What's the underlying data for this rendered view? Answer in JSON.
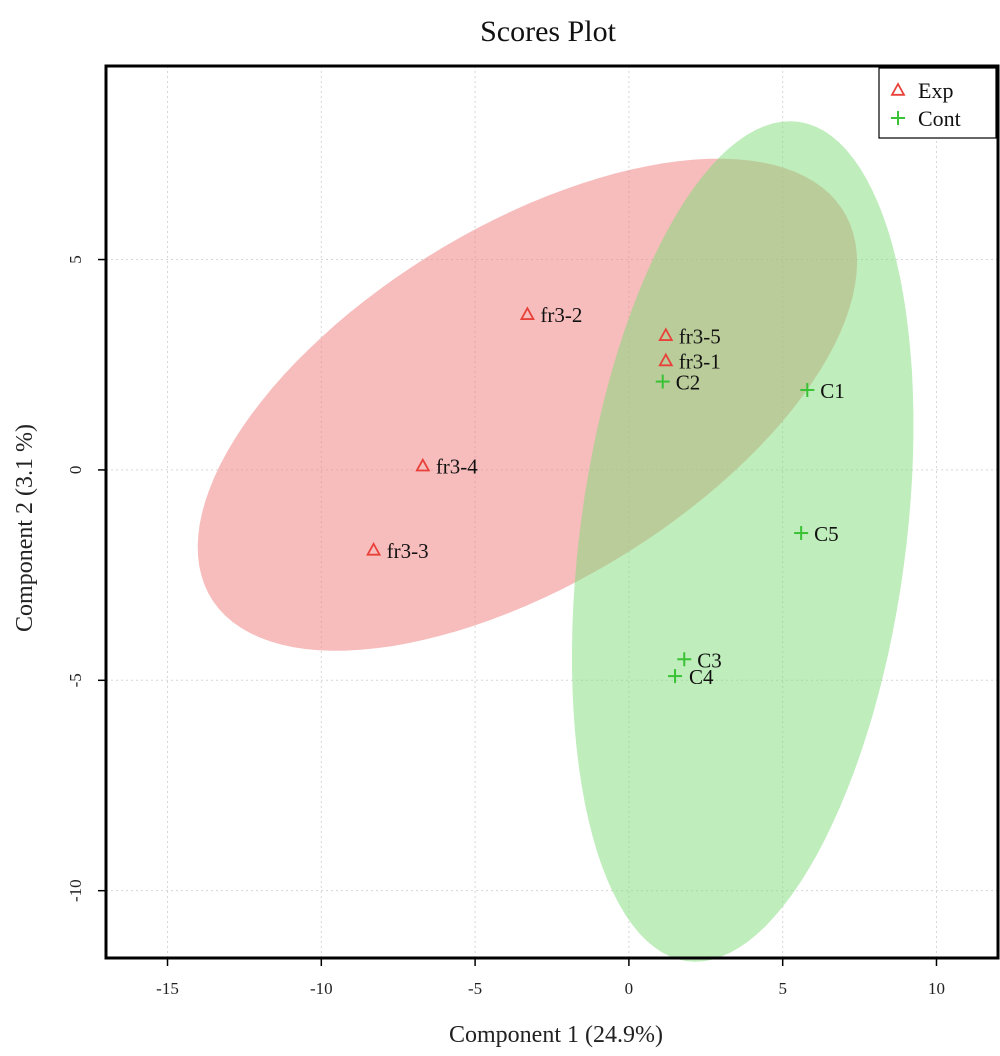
{
  "chart_data": {
    "type": "scatter",
    "title": "Scores Plot",
    "xlabel": "Component 1 (24.9%)",
    "ylabel": "Component 2 (3.1 %)",
    "xlim": [
      -17,
      12
    ],
    "ylim": [
      -11.6,
      9.6
    ],
    "xticks": [
      -15,
      -10,
      -5,
      0,
      5,
      10
    ],
    "yticks": [
      5,
      0,
      -5,
      -10
    ],
    "grid": true,
    "legend_position": "top-right",
    "series": [
      {
        "name": "Exp",
        "marker": "triangle",
        "color": "#e8413a",
        "fill": "#f08585",
        "fill_opacity": 0.55,
        "ellipse": {
          "cx": -3.3,
          "cy": 1.55,
          "rx": 11.35,
          "ry": 4.5,
          "angle_deg": 21
        },
        "points": [
          {
            "label": "fr3-2",
            "x": -3.3,
            "y": 3.7
          },
          {
            "label": "fr3-5",
            "x": 1.2,
            "y": 3.2
          },
          {
            "label": "fr3-1",
            "x": 1.2,
            "y": 2.6
          },
          {
            "label": "fr3-4",
            "x": -6.7,
            "y": 0.1
          },
          {
            "label": "fr3-3",
            "x": -8.3,
            "y": -1.9
          }
        ]
      },
      {
        "name": "Cont",
        "marker": "plus",
        "color": "#39c234",
        "fill": "#7fdc7a",
        "fill_opacity": 0.5,
        "ellipse": {
          "cx": 3.7,
          "cy": -1.7,
          "rx": 10.15,
          "ry": 5.25,
          "angle_deg": 78
        },
        "points": [
          {
            "label": "C2",
            "x": 1.1,
            "y": 2.1
          },
          {
            "label": "C1",
            "x": 5.8,
            "y": 1.9
          },
          {
            "label": "C5",
            "x": 5.6,
            "y": -1.5
          },
          {
            "label": "C3",
            "x": 1.8,
            "y": -4.5
          },
          {
            "label": "C4",
            "x": 1.5,
            "y": -4.9
          }
        ]
      }
    ]
  }
}
